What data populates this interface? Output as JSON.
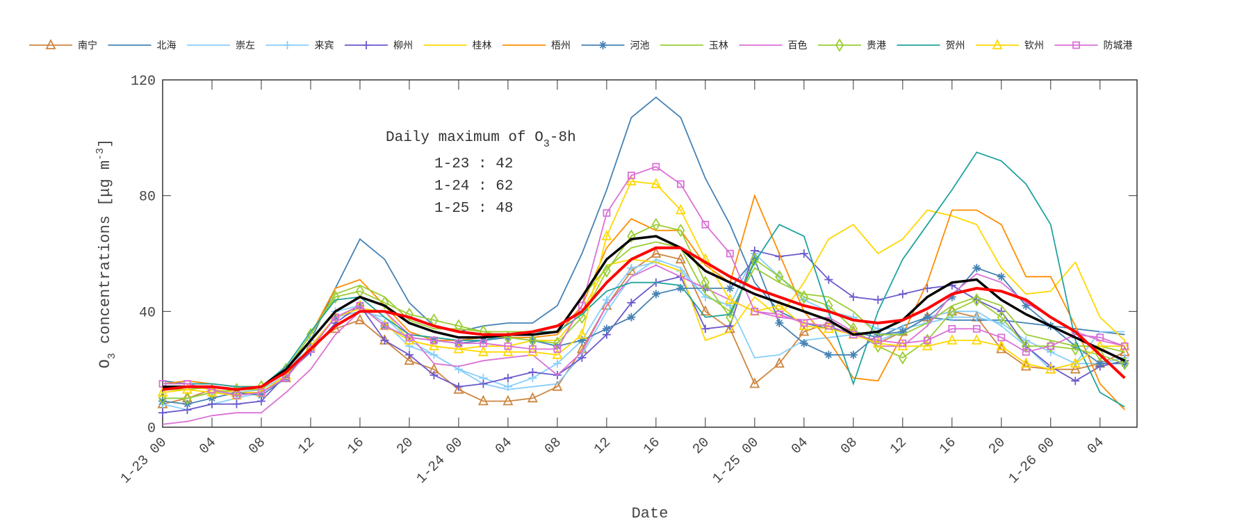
{
  "chart_data": {
    "type": "line",
    "xlabel": "Date",
    "ylabel_main": "O",
    "ylabel_sub": "3",
    "ylabel_rest": " concentrations [μg m",
    "ylabel_sup": "-3",
    "ylabel_end": "]",
    "ylim": [
      0,
      120
    ],
    "xlim_hours": [
      0,
      79
    ],
    "yticks": [
      0,
      40,
      80,
      120
    ],
    "xtick_hours": [
      0,
      4,
      8,
      12,
      16,
      20,
      24,
      28,
      32,
      36,
      40,
      44,
      48,
      52,
      56,
      60,
      64,
      68,
      72,
      76
    ],
    "xtick_labels": [
      "1-23 00",
      "04",
      "08",
      "12",
      "16",
      "20",
      "1-24 00",
      "04",
      "08",
      "12",
      "16",
      "20",
      "1-25 00",
      "04",
      "08",
      "12",
      "16",
      "20",
      "1-26 00",
      "04"
    ],
    "annotation": {
      "title_main": "Daily maximum of O",
      "title_sub": "3",
      "title_rest": "-8h",
      "lines": [
        "1-23 : 42",
        "1-24 : 62",
        "1-25 : 48"
      ]
    },
    "legend_placement": "top",
    "x": [
      0,
      2,
      4,
      6,
      8,
      10,
      12,
      14,
      16,
      18,
      20,
      22,
      24,
      26,
      28,
      30,
      32,
      34,
      36,
      38,
      40,
      42,
      44,
      46,
      48,
      50,
      52,
      54,
      56,
      58,
      60,
      62,
      64,
      66,
      68,
      70,
      72,
      74,
      76,
      78
    ],
    "series": [
      {
        "name": "南宁",
        "color": "#cd853f",
        "marker": "triangle",
        "values": [
          8,
          10,
          13,
          12,
          12,
          17,
          28,
          34,
          37,
          30,
          23,
          20,
          13,
          9,
          9,
          10,
          14,
          27,
          42,
          54,
          60,
          58,
          40,
          34,
          15,
          22,
          33,
          36,
          33,
          29,
          33,
          38,
          40,
          38,
          27,
          21,
          20,
          20,
          22,
          26
        ]
      },
      {
        "name": "北海",
        "color": "#4682b4",
        "marker": "none",
        "values": [
          16,
          15,
          15,
          14,
          14,
          20,
          30,
          48,
          65,
          58,
          43,
          35,
          33,
          35,
          36,
          36,
          42,
          60,
          82,
          107,
          114,
          107,
          86,
          70,
          50,
          40,
          36,
          34,
          33,
          31,
          35,
          38,
          37,
          37,
          37,
          36,
          35,
          34,
          33,
          32
        ]
      },
      {
        "name": "崇左",
        "color": "#87cefa",
        "marker": "none",
        "values": [
          10,
          10,
          12,
          12,
          13,
          18,
          28,
          38,
          40,
          38,
          30,
          25,
          20,
          15,
          13,
          14,
          15,
          25,
          40,
          52,
          58,
          55,
          45,
          42,
          24,
          25,
          30,
          31,
          32,
          30,
          33,
          38,
          40,
          40,
          35,
          28,
          20,
          22,
          33,
          33
        ]
      },
      {
        "name": "来宾",
        "color": "#87cefa",
        "marker": "plus",
        "values": [
          8,
          6,
          8,
          10,
          12,
          18,
          30,
          40,
          42,
          36,
          28,
          25,
          20,
          17,
          14,
          17,
          22,
          30,
          44,
          55,
          57,
          54,
          45,
          42,
          60,
          52,
          44,
          40,
          38,
          34,
          34,
          36,
          38,
          38,
          36,
          30,
          26,
          22,
          22,
          24
        ]
      },
      {
        "name": "柳州",
        "color": "#6a5acd",
        "marker": "plus",
        "values": [
          5,
          6,
          8,
          8,
          9,
          18,
          26,
          36,
          42,
          30,
          25,
          18,
          14,
          15,
          17,
          19,
          18,
          24,
          32,
          43,
          50,
          52,
          34,
          35,
          61,
          59,
          60,
          51,
          45,
          44,
          46,
          48,
          49,
          44,
          40,
          28,
          21,
          16,
          21,
          23
        ]
      },
      {
        "name": "桂林",
        "color": "#ffd700",
        "marker": "none",
        "values": [
          14,
          14,
          13,
          12,
          12,
          17,
          27,
          38,
          41,
          40,
          30,
          28,
          27,
          28,
          28,
          30,
          30,
          40,
          56,
          58,
          57,
          54,
          30,
          33,
          45,
          38,
          50,
          65,
          70,
          60,
          65,
          75,
          73,
          70,
          55,
          46,
          47,
          57,
          38,
          30
        ]
      },
      {
        "name": "梧州",
        "color": "#ff8c00",
        "marker": "none",
        "values": [
          15,
          16,
          15,
          14,
          14,
          20,
          32,
          48,
          51,
          42,
          33,
          30,
          30,
          31,
          31,
          31,
          32,
          42,
          62,
          72,
          68,
          68,
          56,
          50,
          80,
          60,
          40,
          30,
          17,
          16,
          32,
          50,
          75,
          75,
          70,
          52,
          52,
          35,
          15,
          6
        ]
      },
      {
        "name": "河池",
        "color": "#4682b4",
        "marker": "star",
        "values": [
          9,
          8,
          10,
          12,
          11,
          17,
          28,
          38,
          42,
          35,
          31,
          30,
          29,
          30,
          31,
          30,
          28,
          30,
          34,
          38,
          46,
          48,
          48,
          48,
          58,
          36,
          29,
          25,
          25,
          32,
          33,
          38,
          45,
          55,
          52,
          42,
          35,
          28,
          22,
          22
        ]
      },
      {
        "name": "玉林",
        "color": "#9acd32",
        "marker": "none",
        "values": [
          13,
          13,
          14,
          13,
          13,
          20,
          32,
          46,
          49,
          45,
          37,
          34,
          34,
          33,
          33,
          33,
          33,
          45,
          55,
          62,
          64,
          62,
          46,
          40,
          55,
          50,
          46,
          45,
          40,
          32,
          32,
          36,
          42,
          45,
          42,
          32,
          30,
          28,
          28,
          26
        ]
      },
      {
        "name": "百色",
        "color": "#da70d6",
        "marker": "none",
        "values": [
          1,
          2,
          4,
          5,
          5,
          12,
          20,
          32,
          40,
          40,
          32,
          22,
          21,
          23,
          24,
          25,
          18,
          26,
          42,
          52,
          56,
          52,
          48,
          44,
          40,
          38,
          37,
          38,
          33,
          28,
          28,
          35,
          46,
          53,
          50,
          43,
          38,
          33,
          30,
          28
        ]
      },
      {
        "name": "贵港",
        "color": "#9acd32",
        "marker": "diamond",
        "values": [
          10,
          10,
          12,
          13,
          14,
          20,
          32,
          45,
          47,
          43,
          39,
          37,
          35,
          33,
          31,
          30,
          29,
          38,
          54,
          66,
          70,
          68,
          50,
          38,
          58,
          52,
          45,
          42,
          34,
          28,
          24,
          30,
          40,
          44,
          38,
          28,
          28,
          27,
          25,
          22
        ]
      },
      {
        "name": "贺州",
        "color": "#20a39e",
        "marker": "none",
        "values": [
          15,
          15,
          15,
          14,
          14,
          21,
          33,
          44,
          45,
          38,
          32,
          31,
          30,
          30,
          32,
          33,
          33,
          39,
          47,
          50,
          50,
          49,
          38,
          39,
          57,
          70,
          66,
          40,
          15,
          40,
          58,
          70,
          82,
          95,
          92,
          84,
          70,
          30,
          12,
          7
        ]
      },
      {
        "name": "钦州",
        "color": "#ffd700",
        "marker": "triangle",
        "values": [
          12,
          13,
          12,
          11,
          12,
          18,
          28,
          38,
          42,
          35,
          30,
          28,
          27,
          26,
          26,
          26,
          25,
          32,
          66,
          85,
          84,
          75,
          58,
          44,
          40,
          42,
          35,
          34,
          32,
          29,
          28,
          28,
          30,
          30,
          28,
          22,
          20,
          22,
          28,
          28
        ]
      },
      {
        "name": "防城港",
        "color": "#da70d6",
        "marker": "square",
        "values": [
          15,
          15,
          13,
          11,
          12,
          17,
          27,
          38,
          42,
          35,
          31,
          30,
          29,
          29,
          28,
          27,
          27,
          42,
          74,
          87,
          90,
          84,
          70,
          60,
          40,
          39,
          36,
          35,
          32,
          30,
          29,
          30,
          34,
          34,
          31,
          26,
          28,
          32,
          31,
          28
        ]
      }
    ],
    "mean_line": {
      "color": "#000000",
      "values": [
        14,
        14,
        14,
        13,
        14,
        20,
        30,
        40,
        45,
        42,
        36,
        33,
        31,
        31,
        32,
        32,
        33,
        45,
        58,
        65,
        66,
        62,
        54,
        50,
        46,
        43,
        40,
        37,
        32,
        33,
        37,
        45,
        50,
        51,
        44,
        39,
        35,
        31,
        27,
        23
      ]
    },
    "smooth_line": {
      "color": "#ff0000",
      "values": [
        13,
        14,
        14,
        13,
        14,
        19,
        27,
        35,
        40,
        40,
        38,
        35,
        33,
        32,
        32,
        33,
        35,
        40,
        50,
        58,
        62,
        62,
        57,
        52,
        48,
        45,
        42,
        40,
        37,
        36,
        37,
        41,
        46,
        48,
        47,
        44,
        38,
        33,
        25,
        17
      ]
    }
  }
}
